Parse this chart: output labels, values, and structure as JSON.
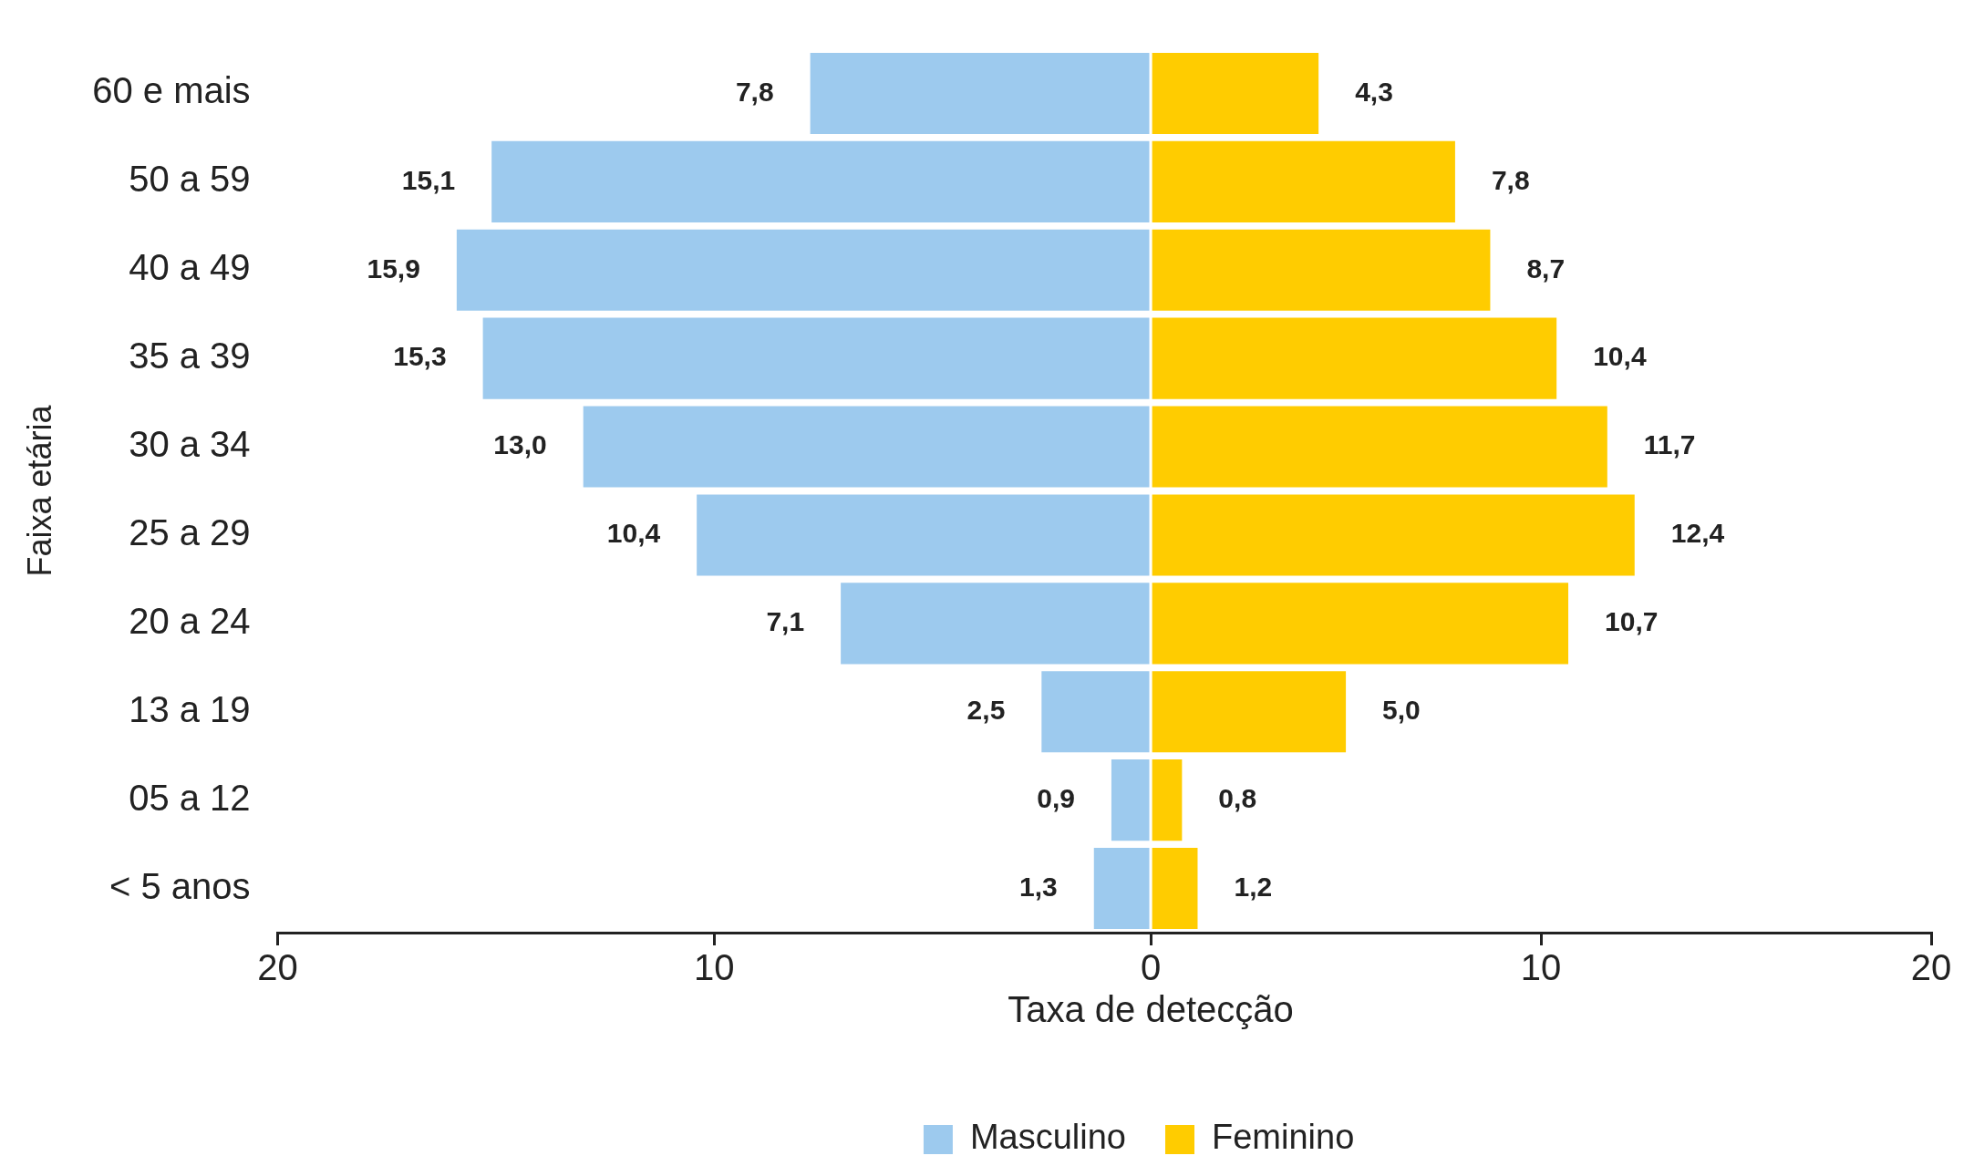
{
  "chart_data": [
    {
      "type": "bar",
      "orientation": "horizontal",
      "categories": [
        "60 e mais",
        "50 a 59",
        "40 a 49",
        "35 a 39",
        "30 a 34",
        "25 a 29",
        "20 a 24",
        "13 a 19",
        "05 a 12",
        "< 5 anos"
      ],
      "series": [
        {
          "name": "Masculino",
          "color": "#9dcaee",
          "values": [
            7.8,
            15.1,
            15.9,
            15.3,
            13.0,
            10.4,
            7.1,
            2.5,
            0.9,
            1.3
          ],
          "value_labels": [
            "7,8",
            "15,1",
            "15,9",
            "15,3",
            "13,0",
            "10,4",
            "7,1",
            "2,5",
            "0,9",
            "1,3"
          ]
        }
      ],
      "xlim": [
        20,
        0
      ],
      "xticks": [
        20,
        10,
        {
          "value": 0,
          "label": null
        }
      ],
      "xlabel": "Taxa de detecção",
      "ylabel": "Faixa etária",
      "grid": false,
      "legend": "bottom right"
    },
    {
      "type": "bar",
      "orientation": "horizontal",
      "series": [
        {
          "name": "Feminino",
          "color": "#ffcc00",
          "values": [
            4.3,
            7.8,
            8.7,
            10.4,
            11.7,
            12.4,
            10.7,
            5.0,
            0.8,
            1.2
          ],
          "value_labels": [
            "4,3",
            "7,8",
            "8,7",
            "10,4",
            "11,7",
            "12,4",
            "10,7",
            "5,0",
            "0,8",
            "1,2"
          ]
        }
      ],
      "xlim": [
        0,
        20
      ],
      "xticks": [
        0,
        10,
        20
      ],
      "tick_labels": "x",
      "grid": false,
      "legend": "bottom left"
    }
  ]
}
